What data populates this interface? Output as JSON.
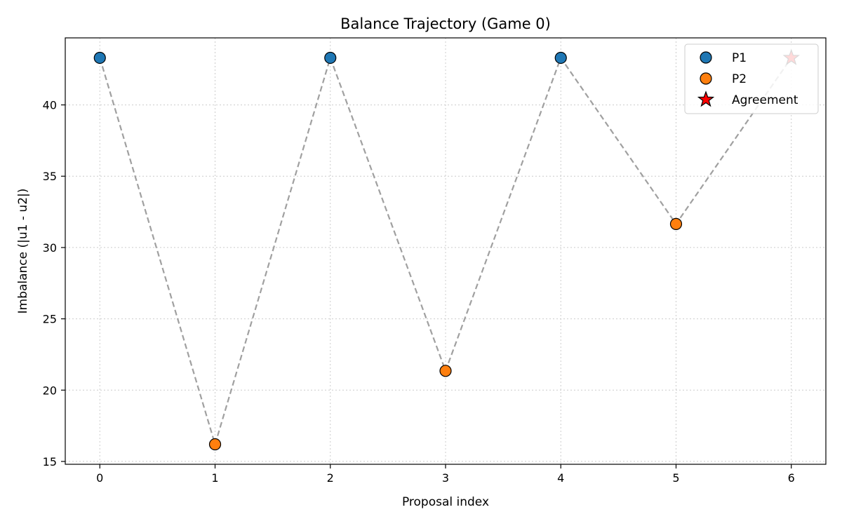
{
  "chart_data": {
    "type": "line",
    "title": "Balance Trajectory (Game 0)",
    "xlabel": "Proposal index",
    "ylabel": "Imbalance (|u1 - u2|)",
    "x": [
      0,
      1,
      2,
      3,
      4,
      5,
      6
    ],
    "y": [
      43.3,
      16.2,
      43.3,
      21.35,
      43.3,
      31.65,
      43.3
    ],
    "proposer": [
      "P1",
      "P2",
      "P1",
      "P2",
      "P1",
      "P2",
      "Agreement"
    ],
    "xlim": [
      -0.3,
      6.3
    ],
    "ylim": [
      14.8,
      44.7
    ],
    "xticks": [
      0,
      1,
      2,
      3,
      4,
      5,
      6
    ],
    "yticks": [
      15,
      20,
      25,
      30,
      35,
      40
    ],
    "grid": true,
    "line_style": "dashed",
    "legend": {
      "position": "top-right",
      "entries": [
        {
          "label": "P1",
          "marker": "circle",
          "color": "#1f77b4"
        },
        {
          "label": "P2",
          "marker": "circle",
          "color": "#ff7f0e"
        },
        {
          "label": "Agreement",
          "marker": "star",
          "color": "#ff0000"
        }
      ]
    },
    "colors": {
      "P1": "#1f77b4",
      "P2": "#ff7f0e",
      "Agreement": "#ff0000",
      "line": "#a0a0a0"
    }
  }
}
